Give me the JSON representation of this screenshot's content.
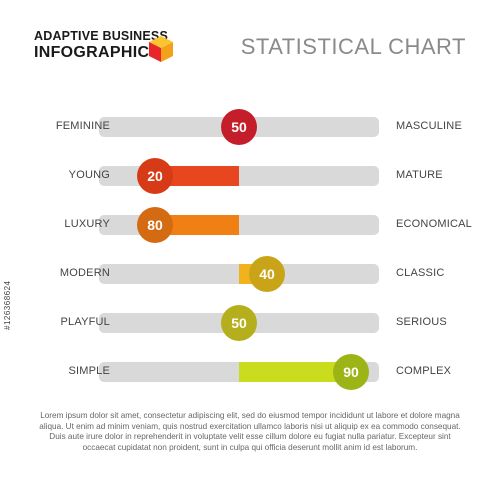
{
  "brand": {
    "line1": "ADAPTIVE BUSINESS",
    "line2": "INFOGRAPHICS",
    "logo_icon": "cube-icon",
    "logo_colors": [
      "#e8262a",
      "#f5a01a",
      "#fbc531"
    ]
  },
  "title": "STATISTICAL CHART",
  "chart_data": {
    "type": "bar",
    "title": "STATISTICAL CHART",
    "scale": [
      0,
      100
    ],
    "center": 50,
    "rows": [
      {
        "left": "FEMININE",
        "right": "MASCULINE",
        "value": 50,
        "label": "50",
        "color": "#e31e25",
        "marker_color": "#c41e2a",
        "direction": "left"
      },
      {
        "left": "YOUNG",
        "right": "MATURE",
        "value": 20,
        "label": "20",
        "color": "#e8461e",
        "marker_color": "#d73a16",
        "direction": "right"
      },
      {
        "left": "LUXURY",
        "right": "ECONOMICAL",
        "value": 80,
        "label": "80",
        "color": "#f07f14",
        "marker_color": "#d46a12",
        "direction": "left"
      },
      {
        "left": "MODERN",
        "right": "CLASSIC",
        "value": 40,
        "label": "40",
        "color": "#f2b21c",
        "marker_color": "#c9a419",
        "direction": "left"
      },
      {
        "left": "PLAYFUL",
        "right": "SERIOUS",
        "value": 50,
        "label": "50",
        "color": "#ede42a",
        "marker_color": "#b5ae1d",
        "direction": "right"
      },
      {
        "left": "SIMPLE",
        "right": "COMPLEX",
        "value": 90,
        "label": "90",
        "color": "#c9dc1e",
        "marker_color": "#9cb416",
        "direction": "right"
      }
    ],
    "track_color": "#d9d9d9"
  },
  "footer": {
    "lines": [
      "Lorem ipsum dolor sit amet, consectetur adipiscing elit, sed do eiusmod tempor incididunt ut labore et dolore magna",
      "aliqua. Ut enim ad minim veniam, quis nostrud exercitation ullamco laboris nisi ut aliquip ex ea commodo consequat.",
      "Duis aute irure dolor in reprehenderit in voluptate velit esse cillum dolore eu fugiat nulla pariatur. Excepteur sint",
      "occaecat cupidatat non proident, sunt in culpa qui officia deserunt mollit anim id est laborum."
    ]
  },
  "watermark_id": "#126368624"
}
